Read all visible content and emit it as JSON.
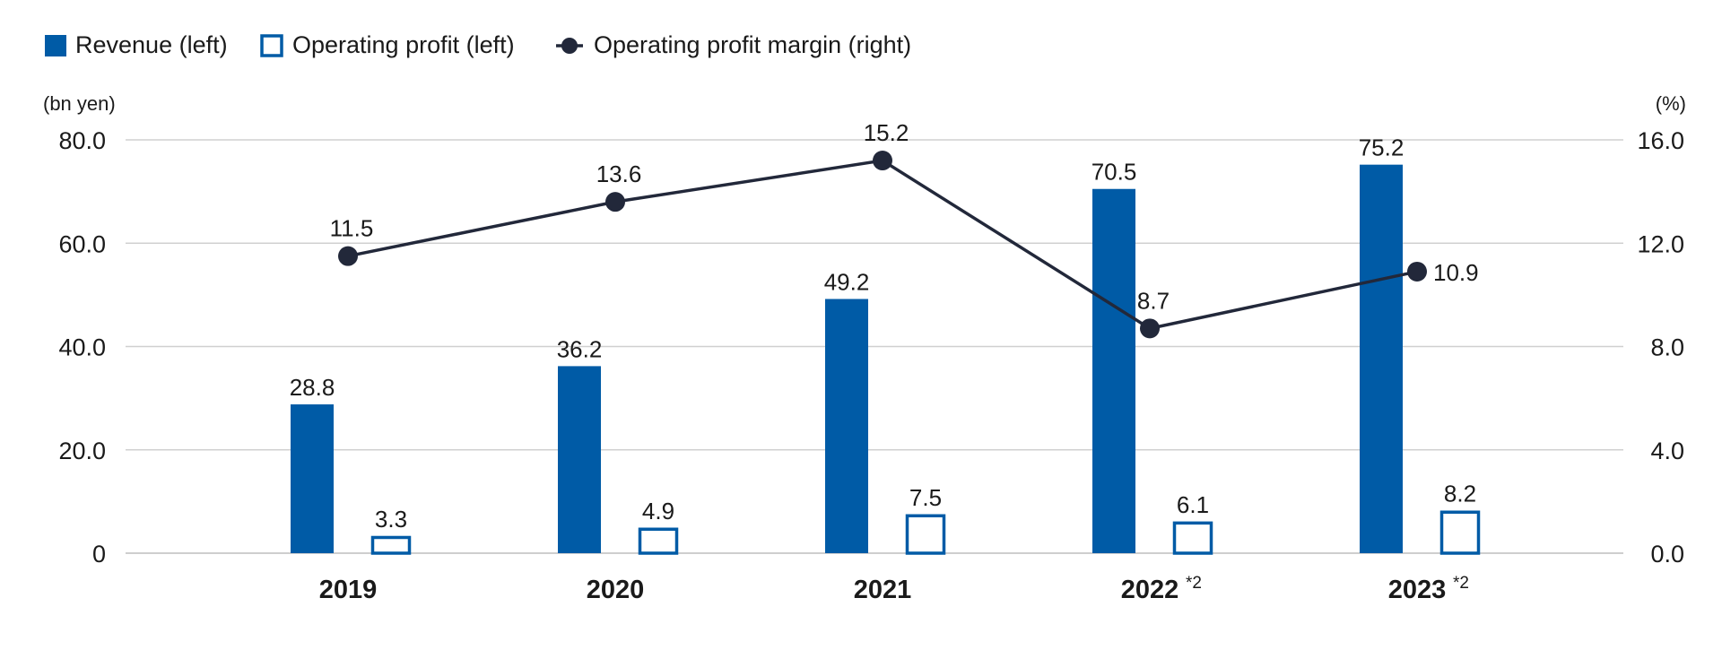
{
  "chart_data": {
    "type": "bar",
    "categories": [
      "2019",
      "2020",
      "2021",
      "2022",
      "2023"
    ],
    "category_notes": [
      "",
      "",
      "",
      "*2",
      "*2"
    ],
    "left_axis": {
      "label": "(bn yen)",
      "ylim": [
        0,
        80
      ],
      "ticks": [
        0,
        20,
        40,
        60,
        80
      ],
      "tick_labels": [
        "0",
        "20.0",
        "40.0",
        "60.0",
        "80.0"
      ]
    },
    "right_axis": {
      "label": "(%)",
      "ylim": [
        0,
        16
      ],
      "ticks": [
        0,
        4,
        8,
        12,
        16
      ],
      "tick_labels": [
        "0.0",
        "4.0",
        "8.0",
        "12.0",
        "16.0"
      ]
    },
    "series": [
      {
        "name": "Revenue (left)",
        "type": "bar",
        "axis": "left",
        "style": "filled",
        "values": [
          28.8,
          36.2,
          49.2,
          70.5,
          75.2
        ],
        "labels": [
          "28.8",
          "36.2",
          "49.2",
          "70.5",
          "75.2"
        ]
      },
      {
        "name": "Operating profit (left)",
        "type": "bar",
        "axis": "left",
        "style": "outline",
        "values": [
          3.3,
          4.9,
          7.5,
          6.1,
          8.2
        ],
        "labels": [
          "3.3",
          "4.9",
          "7.5",
          "6.1",
          "8.2"
        ]
      },
      {
        "name": "Operating profit margin (right)",
        "type": "line",
        "axis": "right",
        "values": [
          11.5,
          13.6,
          15.2,
          8.7,
          10.9
        ],
        "labels": [
          "11.5",
          "13.6",
          "15.2",
          "8.7",
          "10.9"
        ]
      }
    ],
    "legend_position": "top-left",
    "grid": true,
    "colors": {
      "revenue": "#005ba6",
      "operating_profit": "#005ba6",
      "margin_line": "#22283a",
      "grid": "#d0d0d0",
      "text": "#1a1a1a"
    }
  }
}
